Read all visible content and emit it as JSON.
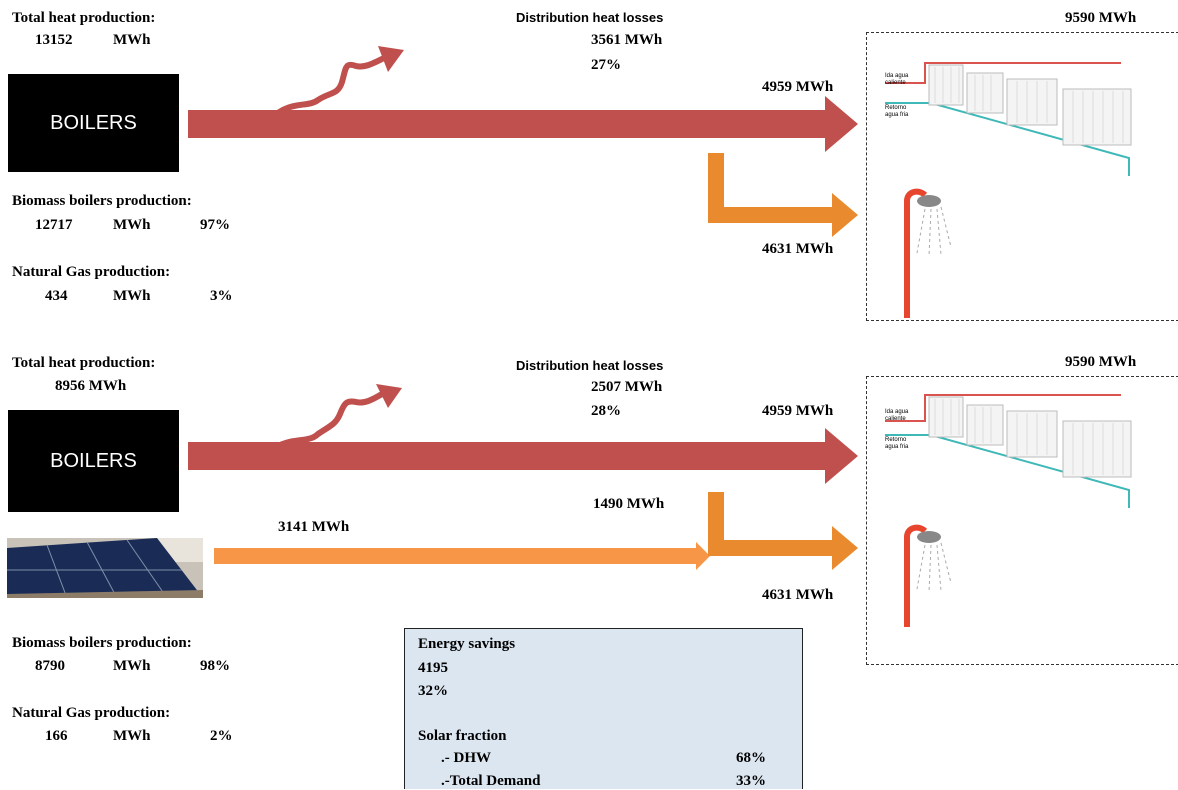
{
  "colors": {
    "heating_arrow": "#c0504d",
    "dhw_arrow": "#f79646",
    "boiler_bg": "#000000",
    "info_box_bg": "#dce6f1",
    "pipe_hot": "#d9534f",
    "pipe_cold": "#3fb8b8"
  },
  "scenario1": {
    "total_heat_label": "Total heat production:",
    "total_heat_value": "13152",
    "total_heat_unit": "MWh",
    "boilers_label": "BOILERS",
    "losses_label": "Distribution heat losses",
    "losses_value": "3561 MWh",
    "losses_pct": "27%",
    "heating_value": "4959 MWh",
    "dhw_value": "4631 MWh",
    "demand_value": "9590 MWh",
    "biomass_label": "Biomass boilers production:",
    "biomass_value": "12717",
    "biomass_unit": "MWh",
    "biomass_pct": "97%",
    "gas_label": "Natural Gas production:",
    "gas_value": "434",
    "gas_unit": "MWh",
    "gas_pct": "3%"
  },
  "scenario2": {
    "total_heat_label": "Total heat production:",
    "total_heat_value": "8956 MWh",
    "boilers_label": "BOILERS",
    "losses_label": "Distribution heat losses",
    "losses_value": "2507 MWh",
    "losses_pct": "28%",
    "heating_value": "4959 MWh",
    "boiler_dhw_value": "1490 MWh",
    "solar_value": "3141 MWh",
    "dhw_value": "4631 MWh",
    "demand_value": "9590 MWh",
    "biomass_label": "Biomass boilers production:",
    "biomass_value": "8790",
    "biomass_unit": "MWh",
    "biomass_pct": "98%",
    "gas_label": "Natural Gas production:",
    "gas_value": "166",
    "gas_unit": "MWh",
    "gas_pct": "2%"
  },
  "radiator_labels": {
    "hot": "Ida agua caliente",
    "cold": "Retorno agua fria"
  },
  "summary": {
    "energy_savings_label": "Energy savings",
    "energy_savings_value": "4195",
    "energy_savings_pct": "32%",
    "solar_fraction_label": "Solar fraction",
    "dhw_label": ".- DHW",
    "dhw_pct": "68%",
    "total_demand_label": ".-Total Demand",
    "total_demand_pct": "33%"
  }
}
